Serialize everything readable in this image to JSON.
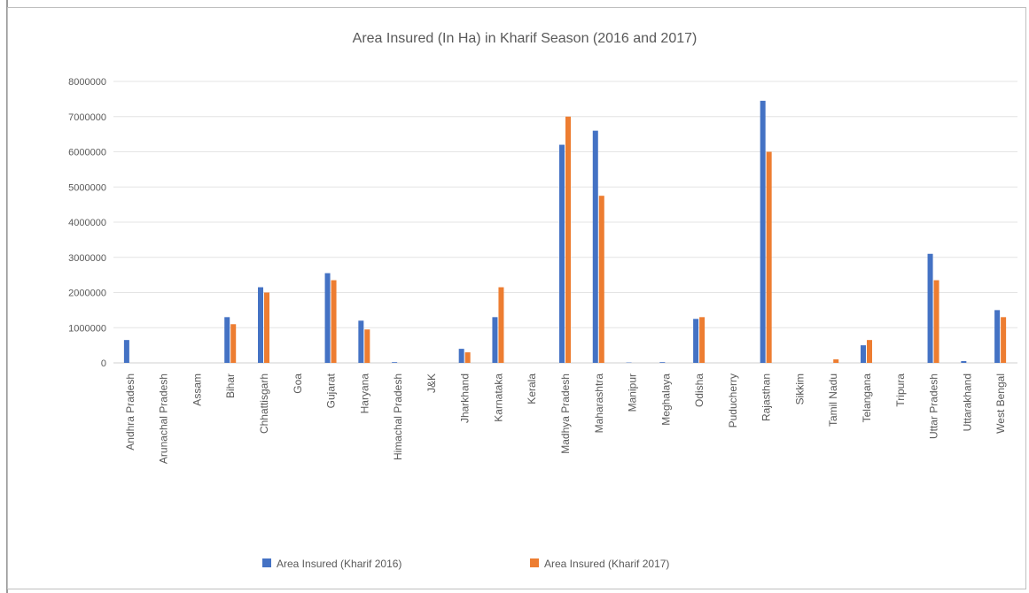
{
  "chart_data": {
    "type": "bar",
    "title": "Area Insured (In Ha) in Kharif Season (2016 and 2017)",
    "xlabel": "",
    "ylabel": "",
    "ylim": [
      0,
      8000000
    ],
    "yticks": [
      0,
      1000000,
      2000000,
      3000000,
      4000000,
      5000000,
      6000000,
      7000000,
      8000000
    ],
    "ytick_labels": [
      "0",
      "1000000",
      "2000000",
      "3000000",
      "4000000",
      "5000000",
      "6000000",
      "7000000",
      "8000000"
    ],
    "grid": true,
    "legend_position": "bottom",
    "categories": [
      "Andhra Pradesh",
      "Arunachal Pradesh",
      "Assam",
      "Bihar",
      "Chhattisgarh",
      "Goa",
      "Gujarat",
      "Haryana",
      "Himachal Pradesh",
      "J&K",
      "Jharkhand",
      "Karnataka",
      "Kerala",
      "Madhya Pradesh",
      "Maharashtra",
      "Manipur",
      "Meghalaya",
      "Odisha",
      "Puducherry",
      "Rajasthan",
      "Sikkim",
      "Tamil Nadu",
      "Telangana",
      "Tripura",
      "Uttar Pradesh",
      "Uttarakhand",
      "West Bengal"
    ],
    "series": [
      {
        "name": "Area Insured (Kharif 2016)",
        "color": "#4472c4",
        "values": [
          650000,
          0,
          0,
          1300000,
          2150000,
          0,
          2550000,
          1200000,
          20000,
          0,
          400000,
          1300000,
          0,
          6200000,
          6600000,
          10000,
          20000,
          1250000,
          0,
          7450000,
          0,
          0,
          500000,
          0,
          3100000,
          50000,
          1500000
        ]
      },
      {
        "name": "Area Insured (Kharif 2017)",
        "color": "#ed7d31",
        "values": [
          0,
          0,
          0,
          1100000,
          2000000,
          0,
          2350000,
          950000,
          0,
          0,
          300000,
          2150000,
          0,
          7000000,
          4750000,
          0,
          0,
          1300000,
          0,
          6000000,
          0,
          100000,
          650000,
          0,
          2350000,
          0,
          1300000
        ]
      }
    ]
  }
}
